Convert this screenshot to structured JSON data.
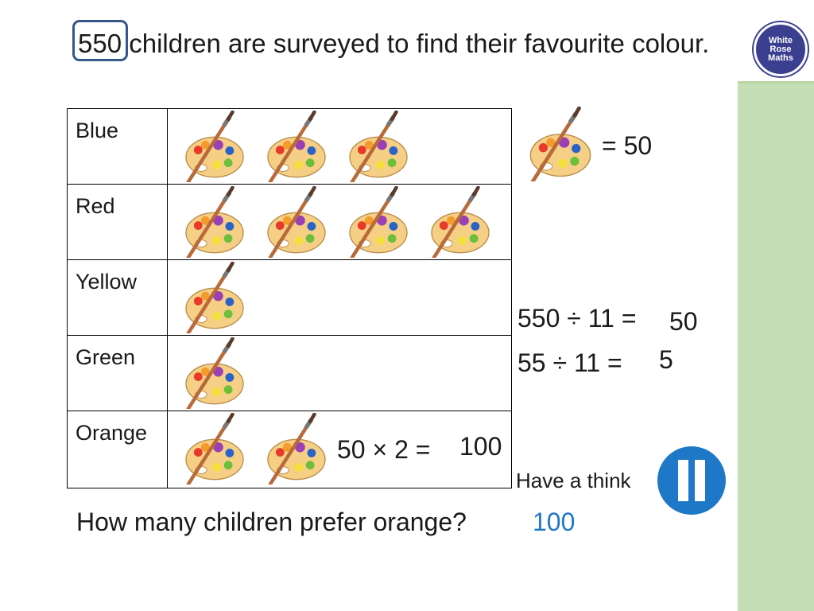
{
  "logo": {
    "line1": "White",
    "line2": "Rose",
    "line3": "Maths"
  },
  "question": {
    "highlight": "550",
    "rest": " children are surveyed to find their favourite colour."
  },
  "table": {
    "rows": [
      {
        "label": "Blue",
        "count": 3
      },
      {
        "label": "Red",
        "count": 4
      },
      {
        "label": "Yellow",
        "count": 1
      },
      {
        "label": "Green",
        "count": 1
      },
      {
        "label": "Orange",
        "count": 2
      }
    ],
    "orange_calc": "50 × 2 =",
    "orange_answer": "100"
  },
  "key": {
    "text": "= 50"
  },
  "calc": {
    "line1": "550 ÷ 11 =",
    "line1_answer": "50",
    "line2": "55 ÷ 11 =",
    "line2_answer": "5"
  },
  "prompt": {
    "text": "Have a think"
  },
  "bottom": {
    "question": "How many children prefer orange?",
    "answer": "100"
  },
  "colors": {
    "accent": "#1f77c8",
    "box": "#34578a",
    "strip": "#c5deb6",
    "logo": "#3b3f8f"
  }
}
